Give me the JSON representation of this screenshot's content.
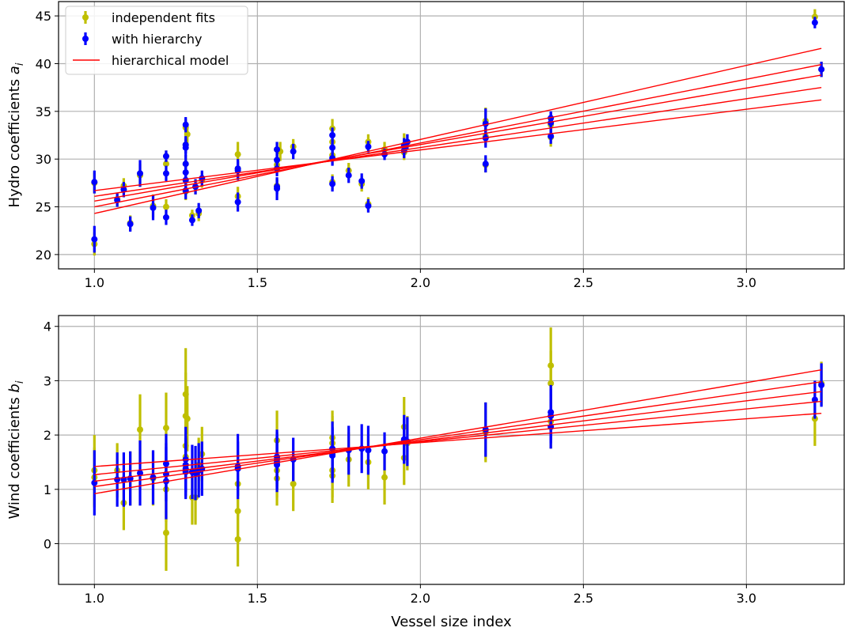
{
  "chart_data": [
    {
      "type": "scatter",
      "title": "",
      "xlabel": "",
      "ylabel_text": "Hydro coefficients ",
      "ylabel_sym": "a",
      "ylabel_sub": "i",
      "xlim": [
        0.89,
        3.3
      ],
      "ylim": [
        18.5,
        46.5
      ],
      "xticks": [
        1.0,
        1.5,
        2.0,
        2.5,
        3.0
      ],
      "xtick_labels": [
        "1.0",
        "1.5",
        "2.0",
        "2.5",
        "3.0"
      ],
      "yticks": [
        20,
        25,
        30,
        35,
        40,
        45
      ],
      "ytick_labels": [
        "20",
        "25",
        "30",
        "35",
        "40",
        "45"
      ],
      "grid": true,
      "legend": {
        "placement": "upper-left",
        "entries": [
          "independent fits",
          "with hierarchy",
          "hierarchical model"
        ]
      },
      "series": [
        {
          "name": "independent fits",
          "kind": "errorbar",
          "color": "#bfbf00",
          "points": [
            [
              1.0,
              27.5,
              1.1
            ],
            [
              1.0,
              21.1,
              1.2
            ],
            [
              1.07,
              25.8,
              0.7
            ],
            [
              1.09,
              27.2,
              0.8
            ],
            [
              1.11,
              23.3,
              0.8
            ],
            [
              1.14,
              28.3,
              1.2
            ],
            [
              1.18,
              25.1,
              1.2
            ],
            [
              1.22,
              29.5,
              0.8
            ],
            [
              1.22,
              25.0,
              0.8
            ],
            [
              1.22,
              30.3,
              0.6
            ],
            [
              1.28,
              33.3,
              0.9
            ],
            [
              1.28,
              31.5,
              0.9
            ],
            [
              1.28,
              29.5,
              0.9
            ],
            [
              1.28,
              27.8,
              0.9
            ],
            [
              1.28,
              26.6,
              0.9
            ],
            [
              1.285,
              32.6,
              0.9
            ],
            [
              1.3,
              24.1,
              0.6
            ],
            [
              1.31,
              27.1,
              0.8
            ],
            [
              1.32,
              24.3,
              0.8
            ],
            [
              1.33,
              27.8,
              0.8
            ],
            [
              1.44,
              30.5,
              1.3
            ],
            [
              1.44,
              29.0,
              1.0
            ],
            [
              1.44,
              26.1,
              1.0
            ],
            [
              1.56,
              31.0,
              0.8
            ],
            [
              1.56,
              29.4,
              0.8
            ],
            [
              1.56,
              27.2,
              0.8
            ],
            [
              1.57,
              30.8,
              1.0
            ],
            [
              1.61,
              31.3,
              0.8
            ],
            [
              1.73,
              33.2,
              1.0
            ],
            [
              1.73,
              31.8,
              1.0
            ],
            [
              1.73,
              30.4,
              1.0
            ],
            [
              1.73,
              27.6,
              0.8
            ],
            [
              1.78,
              28.8,
              0.8
            ],
            [
              1.82,
              27.4,
              0.8
            ],
            [
              1.84,
              31.8,
              0.8
            ],
            [
              1.84,
              25.3,
              0.7
            ],
            [
              1.89,
              31.0,
              0.8
            ],
            [
              1.95,
              31.5,
              1.2
            ],
            [
              1.95,
              30.7,
              0.8
            ],
            [
              1.96,
              31.8,
              0.8
            ],
            [
              2.2,
              34.0,
              1.4
            ],
            [
              2.2,
              32.4,
              1.0
            ],
            [
              2.2,
              29.4,
              0.8
            ],
            [
              2.4,
              33.6,
              1.2
            ],
            [
              2.4,
              32.3,
              1.0
            ],
            [
              3.21,
              44.9,
              0.8
            ],
            [
              3.23,
              39.4,
              0.8
            ]
          ]
        },
        {
          "name": "with hierarchy",
          "kind": "errorbar",
          "color": "#0000ff",
          "points": [
            [
              1.0,
              27.6,
              1.2
            ],
            [
              1.0,
              21.6,
              1.4
            ],
            [
              1.07,
              25.7,
              0.7
            ],
            [
              1.09,
              26.8,
              0.8
            ],
            [
              1.11,
              23.2,
              0.8
            ],
            [
              1.14,
              28.5,
              1.4
            ],
            [
              1.18,
              24.9,
              1.3
            ],
            [
              1.22,
              30.3,
              0.6
            ],
            [
              1.22,
              28.5,
              0.8
            ],
            [
              1.22,
              23.9,
              0.8
            ],
            [
              1.28,
              33.6,
              0.8
            ],
            [
              1.28,
              31.5,
              0.9
            ],
            [
              1.28,
              31.2,
              0.9
            ],
            [
              1.28,
              29.5,
              0.9
            ],
            [
              1.28,
              28.6,
              0.9
            ],
            [
              1.28,
              27.8,
              0.9
            ],
            [
              1.28,
              26.7,
              0.9
            ],
            [
              1.3,
              23.6,
              0.6
            ],
            [
              1.31,
              27.1,
              0.8
            ],
            [
              1.32,
              24.6,
              0.8
            ],
            [
              1.33,
              28.0,
              0.8
            ],
            [
              1.44,
              29.0,
              1.0
            ],
            [
              1.44,
              28.8,
              1.0
            ],
            [
              1.44,
              25.5,
              1.0
            ],
            [
              1.56,
              31.0,
              0.8
            ],
            [
              1.56,
              29.9,
              0.8
            ],
            [
              1.56,
              29.0,
              0.8
            ],
            [
              1.56,
              27.1,
              0.8
            ],
            [
              1.56,
              26.9,
              1.2
            ],
            [
              1.61,
              30.8,
              0.8
            ],
            [
              1.73,
              32.5,
              0.8
            ],
            [
              1.73,
              31.2,
              0.8
            ],
            [
              1.73,
              30.1,
              0.8
            ],
            [
              1.73,
              27.4,
              0.8
            ],
            [
              1.78,
              28.3,
              0.8
            ],
            [
              1.82,
              27.7,
              0.8
            ],
            [
              1.84,
              31.3,
              0.6
            ],
            [
              1.84,
              25.1,
              0.7
            ],
            [
              1.89,
              30.5,
              0.6
            ],
            [
              1.95,
              31.4,
              0.8
            ],
            [
              1.95,
              30.9,
              0.8
            ],
            [
              1.96,
              31.8,
              0.8
            ],
            [
              2.2,
              33.7,
              1.6
            ],
            [
              2.2,
              32.2,
              1.0
            ],
            [
              2.2,
              29.5,
              0.9
            ],
            [
              2.4,
              33.8,
              1.2
            ],
            [
              2.4,
              34.3,
              0.6
            ],
            [
              2.4,
              32.4,
              0.8
            ],
            [
              3.21,
              44.3,
              0.6
            ],
            [
              3.23,
              39.4,
              0.8
            ]
          ]
        },
        {
          "name": "hierarchical model",
          "kind": "lines",
          "color": "#ff0000",
          "lines": [
            [
              [
                1.0,
                24.3
              ],
              [
                3.23,
                41.6
              ]
            ],
            [
              [
                1.0,
                25.0
              ],
              [
                3.23,
                39.9
              ]
            ],
            [
              [
                1.0,
                25.6
              ],
              [
                3.23,
                38.8
              ]
            ],
            [
              [
                1.0,
                26.1
              ],
              [
                3.23,
                37.5
              ]
            ],
            [
              [
                1.0,
                26.7
              ],
              [
                3.23,
                36.2
              ]
            ]
          ]
        }
      ]
    },
    {
      "type": "scatter",
      "title": "",
      "xlabel": "Vessel size index",
      "ylabel_text": "Wind coefficients ",
      "ylabel_sym": "b",
      "ylabel_sub": "i",
      "xlim": [
        0.89,
        3.3
      ],
      "ylim": [
        -0.75,
        4.2
      ],
      "xticks": [
        1.0,
        1.5,
        2.0,
        2.5,
        3.0
      ],
      "xtick_labels": [
        "1.0",
        "1.5",
        "2.0",
        "2.5",
        "3.0"
      ],
      "yticks": [
        0,
        1,
        2,
        3,
        4
      ],
      "ytick_labels": [
        "0",
        "1",
        "2",
        "3",
        "4"
      ],
      "grid": true,
      "series": [
        {
          "name": "independent fits",
          "kind": "errorbar",
          "color": "#bfbf00",
          "points": [
            [
              1.0,
              1.35,
              0.65
            ],
            [
              1.0,
              1.22,
              0.55
            ],
            [
              1.07,
              1.35,
              0.5
            ],
            [
              1.09,
              0.75,
              0.5
            ],
            [
              1.11,
              1.2,
              0.5
            ],
            [
              1.14,
              2.1,
              0.65
            ],
            [
              1.18,
              1.2,
              0.5
            ],
            [
              1.22,
              2.13,
              0.65
            ],
            [
              1.22,
              0.2,
              0.7
            ],
            [
              1.22,
              1.0,
              0.6
            ],
            [
              1.28,
              2.75,
              0.85
            ],
            [
              1.28,
              2.35,
              0.8
            ],
            [
              1.28,
              1.8,
              0.7
            ],
            [
              1.28,
              1.6,
              0.6
            ],
            [
              1.28,
              1.35,
              0.5
            ],
            [
              1.285,
              2.3,
              0.6
            ],
            [
              1.3,
              0.85,
              0.5
            ],
            [
              1.31,
              0.85,
              0.5
            ],
            [
              1.32,
              1.45,
              0.5
            ],
            [
              1.33,
              1.65,
              0.5
            ],
            [
              1.44,
              1.1,
              0.6
            ],
            [
              1.44,
              0.6,
              0.6
            ],
            [
              1.44,
              0.08,
              0.5
            ],
            [
              1.56,
              1.9,
              0.55
            ],
            [
              1.56,
              1.35,
              0.5
            ],
            [
              1.56,
              1.2,
              0.5
            ],
            [
              1.61,
              1.1,
              0.5
            ],
            [
              1.73,
              1.95,
              0.5
            ],
            [
              1.73,
              1.85,
              0.5
            ],
            [
              1.73,
              1.35,
              0.5
            ],
            [
              1.73,
              1.25,
              0.5
            ],
            [
              1.78,
              1.55,
              0.5
            ],
            [
              1.84,
              1.5,
              0.5
            ],
            [
              1.89,
              1.22,
              0.5
            ],
            [
              1.95,
              2.15,
              0.55
            ],
            [
              1.95,
              1.58,
              0.5
            ],
            [
              1.96,
              1.85,
              0.5
            ],
            [
              2.2,
              2.05,
              0.55
            ],
            [
              2.4,
              3.28,
              0.7
            ],
            [
              2.4,
              2.95,
              0.6
            ],
            [
              2.4,
              2.25,
              0.5
            ],
            [
              3.21,
              2.3,
              0.5
            ],
            [
              3.23,
              2.95,
              0.4
            ]
          ]
        },
        {
          "name": "with hierarchy",
          "kind": "errorbar",
          "color": "#0000ff",
          "points": [
            [
              1.0,
              1.12,
              0.6
            ],
            [
              1.07,
              1.18,
              0.5
            ],
            [
              1.09,
              1.18,
              0.5
            ],
            [
              1.11,
              1.2,
              0.5
            ],
            [
              1.14,
              1.3,
              0.6
            ],
            [
              1.18,
              1.22,
              0.5
            ],
            [
              1.22,
              1.47,
              0.55
            ],
            [
              1.22,
              1.28,
              0.5
            ],
            [
              1.22,
              1.15,
              0.7
            ],
            [
              1.28,
              1.55,
              0.6
            ],
            [
              1.28,
              1.45,
              0.5
            ],
            [
              1.28,
              1.38,
              0.5
            ],
            [
              1.28,
              1.32,
              0.5
            ],
            [
              1.3,
              1.32,
              0.5
            ],
            [
              1.31,
              1.3,
              0.5
            ],
            [
              1.32,
              1.35,
              0.5
            ],
            [
              1.33,
              1.38,
              0.5
            ],
            [
              1.44,
              1.42,
              0.6
            ],
            [
              1.44,
              1.38,
              0.5
            ],
            [
              1.56,
              1.6,
              0.5
            ],
            [
              1.56,
              1.55,
              0.5
            ],
            [
              1.56,
              1.5,
              0.5
            ],
            [
              1.56,
              1.45,
              0.5
            ],
            [
              1.61,
              1.55,
              0.4
            ],
            [
              1.73,
              1.75,
              0.5
            ],
            [
              1.73,
              1.65,
              0.5
            ],
            [
              1.73,
              1.62,
              0.5
            ],
            [
              1.78,
              1.72,
              0.45
            ],
            [
              1.82,
              1.75,
              0.45
            ],
            [
              1.84,
              1.72,
              0.45
            ],
            [
              1.89,
              1.7,
              0.35
            ],
            [
              1.95,
              1.92,
              0.45
            ],
            [
              1.95,
              1.88,
              0.4
            ],
            [
              1.96,
              1.88,
              0.45
            ],
            [
              2.2,
              2.1,
              0.5
            ],
            [
              2.4,
              2.42,
              0.5
            ],
            [
              2.4,
              2.35,
              0.5
            ],
            [
              2.4,
              2.15,
              0.4
            ],
            [
              3.21,
              2.65,
              0.35
            ],
            [
              3.23,
              2.92,
              0.4
            ]
          ]
        },
        {
          "name": "hierarchical model",
          "kind": "lines",
          "color": "#ff0000",
          "lines": [
            [
              [
                1.0,
                0.92
              ],
              [
                3.23,
                3.2
              ]
            ],
            [
              [
                1.0,
                1.05
              ],
              [
                3.23,
                2.98
              ]
            ],
            [
              [
                1.0,
                1.15
              ],
              [
                3.23,
                2.8
              ]
            ],
            [
              [
                1.0,
                1.27
              ],
              [
                3.23,
                2.62
              ]
            ],
            [
              [
                1.0,
                1.42
              ],
              [
                3.23,
                2.4
              ]
            ]
          ]
        }
      ]
    }
  ]
}
